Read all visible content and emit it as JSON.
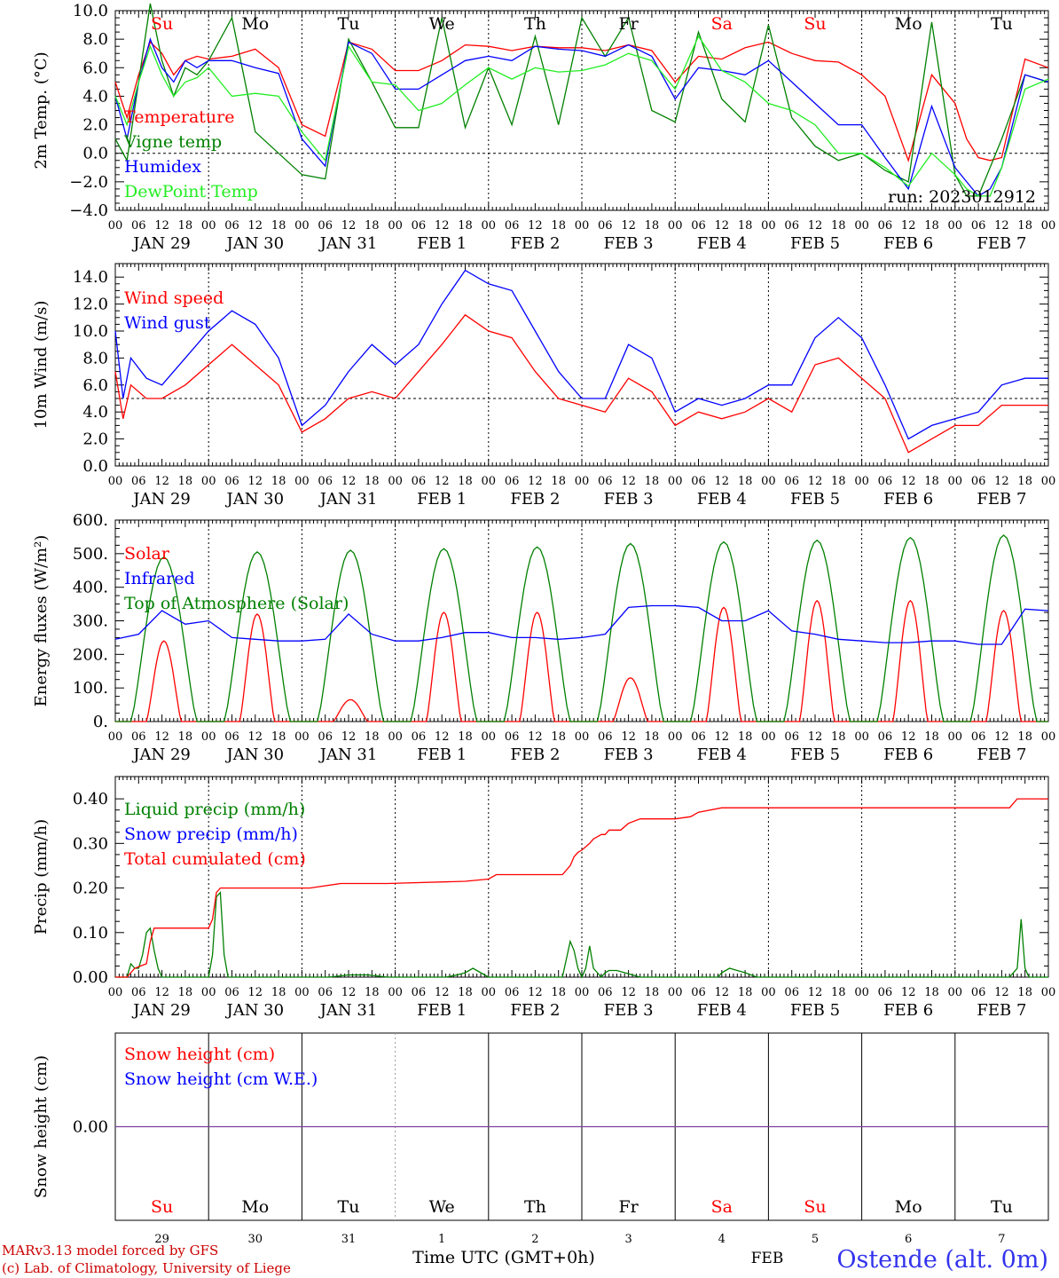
{
  "station": "Ostende (alt. 0m)",
  "run_label": "run: 2023012912",
  "footer": {
    "model": "MARv3.13 model forced by GFS",
    "lab": "(c) Lab. of Climatology, University of Liege",
    "xlabel": "Time UTC (GMT+0h)",
    "month": "FEB"
  },
  "days": [
    "Su",
    "Mo",
    "Tu",
    "We",
    "Th",
    "Fr",
    "Sa",
    "Su",
    "Mo",
    "Tu"
  ],
  "weekend": [
    true,
    false,
    false,
    false,
    false,
    false,
    true,
    true,
    false,
    false
  ],
  "date_labels": [
    "JAN 29",
    "JAN 30",
    "JAN 31",
    "FEB  1",
    "FEB  2",
    "FEB  3",
    "FEB  4",
    "FEB  5",
    "FEB  6",
    "FEB  7"
  ],
  "day_numbers": [
    "29",
    "30",
    "31",
    "1",
    "2",
    "3",
    "4",
    "5",
    "6",
    "7"
  ],
  "hour_ticks": [
    "00",
    "06",
    "12",
    "18"
  ],
  "last_hour_tick": "00",
  "colors": {
    "red": "#ff0000",
    "green": "#008000",
    "blue": "#0000ff",
    "lightgreen": "#22ee22",
    "purple": "#7f3f9f"
  },
  "chart_data": [
    {
      "type": "line",
      "ylabel": "2m Temp. (°C)",
      "ylim": [
        -4,
        10
      ],
      "yticks": [
        -4,
        -2,
        0,
        2,
        4,
        6,
        8,
        10
      ],
      "ytick_labels": [
        "−4.0",
        "−2.0",
        "0.0",
        "2.0",
        "4.0",
        "6.0",
        "8.0",
        "10.0"
      ],
      "ref_line": 0,
      "legend": [
        "Temperature",
        "Vigne temp",
        "Humidex",
        "DewPoint Temp"
      ],
      "series": [
        {
          "name": "Temperature",
          "color": "red",
          "x": [
            0,
            3,
            6,
            9,
            12,
            15,
            18,
            21,
            24,
            30,
            36,
            42,
            48,
            54,
            60,
            66,
            72,
            78,
            84,
            90,
            96,
            102,
            108,
            114,
            120,
            126,
            132,
            138,
            144,
            150,
            156,
            162,
            168,
            174,
            180,
            186,
            192,
            198,
            204,
            210,
            216,
            219,
            222,
            225,
            228,
            234,
            240
          ],
          "y": [
            5,
            2.5,
            5.5,
            7.8,
            7,
            5.5,
            6.5,
            6.8,
            6.6,
            6.8,
            7.3,
            6,
            2,
            1.2,
            7.8,
            7.3,
            5.8,
            5.8,
            6.5,
            7.6,
            7.5,
            7.2,
            7.5,
            7.4,
            7.4,
            7.2,
            7.6,
            7.2,
            5,
            6.8,
            6.6,
            7.4,
            7.8,
            7,
            6.5,
            6.4,
            5.5,
            4,
            -0.5,
            5.5,
            3.5,
            1,
            -0.3,
            -0.5,
            -0.3,
            6.6,
            6
          ]
        },
        {
          "name": "Vigne temp",
          "color": "green",
          "x": [
            0,
            3,
            6,
            9,
            12,
            15,
            18,
            21,
            24,
            30,
            36,
            42,
            48,
            54,
            60,
            66,
            72,
            78,
            84,
            90,
            96,
            102,
            108,
            114,
            120,
            126,
            132,
            138,
            144,
            150,
            156,
            162,
            168,
            174,
            180,
            186,
            192,
            198,
            204,
            210,
            216,
            219,
            222,
            225,
            228,
            234,
            240
          ],
          "y": [
            1,
            -0.5,
            5,
            10.5,
            6.5,
            4,
            6,
            5.5,
            6.5,
            9.5,
            1.5,
            0,
            -1.5,
            -1.8,
            8,
            5,
            1.8,
            1.8,
            9.5,
            1.8,
            6,
            2,
            8.2,
            2,
            9.5,
            6.8,
            9.5,
            3,
            2.2,
            8.5,
            3.8,
            2.2,
            9,
            2.5,
            0.5,
            -0.5,
            0,
            -1.2,
            -2,
            9.2,
            -1.5,
            -3,
            -3,
            -1,
            1,
            5.5,
            5
          ]
        },
        {
          "name": "Humidex",
          "color": "blue",
          "x": [
            0,
            3,
            6,
            9,
            12,
            15,
            18,
            21,
            24,
            30,
            36,
            42,
            48,
            54,
            60,
            66,
            72,
            78,
            84,
            90,
            96,
            102,
            108,
            114,
            120,
            126,
            132,
            138,
            144,
            150,
            156,
            162,
            168,
            174,
            180,
            186,
            192,
            198,
            204,
            210,
            216,
            219,
            222,
            225,
            228,
            234,
            240
          ],
          "y": [
            4,
            1,
            5,
            8,
            6,
            5,
            6.5,
            6,
            6.5,
            6.5,
            6,
            5.6,
            1,
            -0.9,
            7.8,
            7,
            4.5,
            4.5,
            5.5,
            6.5,
            6.8,
            6.5,
            7.5,
            7.3,
            7.2,
            6.8,
            7.6,
            6.8,
            3.8,
            6,
            5.8,
            5.5,
            6.5,
            5,
            3.5,
            2,
            2,
            -0.3,
            -2.5,
            3.3,
            -1,
            -2,
            -3,
            -2.5,
            -1,
            5.5,
            5
          ]
        },
        {
          "name": "DewPoint Temp",
          "color": "lightgreen",
          "x": [
            0,
            3,
            6,
            9,
            12,
            15,
            18,
            21,
            24,
            30,
            36,
            42,
            48,
            54,
            60,
            66,
            72,
            78,
            84,
            90,
            96,
            102,
            108,
            114,
            120,
            126,
            132,
            138,
            144,
            150,
            156,
            162,
            168,
            174,
            180,
            186,
            192,
            198,
            204,
            210,
            216,
            219,
            222,
            225,
            228,
            234,
            240
          ],
          "y": [
            4,
            2,
            5,
            7.5,
            5.5,
            4,
            5,
            5.3,
            6,
            4,
            4.2,
            4,
            1.5,
            -0.5,
            7.5,
            5,
            4.8,
            3,
            3.5,
            4.8,
            6,
            5.2,
            6,
            5.7,
            5.8,
            6.2,
            7,
            6.5,
            4.5,
            8.2,
            5.8,
            5,
            3.5,
            3,
            2,
            0,
            0,
            -1,
            -2.3,
            0,
            -1.5,
            -2.5,
            -3,
            -3,
            -1,
            4.5,
            5.2
          ]
        }
      ]
    },
    {
      "type": "line",
      "ylabel": "10m Wind (m/s)",
      "ylim": [
        0,
        15
      ],
      "yticks": [
        0,
        2,
        4,
        6,
        8,
        10,
        12,
        14
      ],
      "ytick_labels": [
        "0.0",
        "2.0",
        "4.0",
        "6.0",
        "8.0",
        "10.0",
        "12.0",
        "14.0"
      ],
      "ref_line": 5,
      "legend": [
        "Wind speed",
        "Wind gust"
      ],
      "series": [
        {
          "name": "Wind speed",
          "color": "red",
          "x": [
            0,
            2,
            4,
            8,
            12,
            18,
            24,
            30,
            36,
            42,
            48,
            54,
            60,
            66,
            72,
            78,
            84,
            90,
            96,
            102,
            108,
            114,
            120,
            126,
            132,
            138,
            144,
            150,
            156,
            162,
            168,
            174,
            180,
            186,
            192,
            198,
            204,
            210,
            216,
            222,
            228,
            234,
            240
          ],
          "y": [
            7,
            3.5,
            6,
            5,
            5,
            6,
            7.5,
            9,
            7.5,
            6,
            2.5,
            3.5,
            5,
            5.5,
            5,
            7,
            9,
            11.2,
            10,
            9.5,
            7,
            5,
            4.5,
            4,
            6.5,
            5.5,
            3,
            4,
            3.5,
            4,
            5,
            4,
            7.5,
            8,
            6.5,
            5,
            1,
            2,
            3,
            3,
            4.5,
            4.5,
            4.5
          ]
        },
        {
          "name": "Wind gust",
          "color": "blue",
          "x": [
            0,
            2,
            4,
            8,
            12,
            18,
            24,
            30,
            36,
            42,
            48,
            54,
            60,
            66,
            72,
            78,
            84,
            90,
            96,
            102,
            108,
            114,
            120,
            126,
            132,
            138,
            144,
            150,
            156,
            162,
            168,
            174,
            180,
            186,
            192,
            198,
            204,
            210,
            216,
            222,
            228,
            234,
            240
          ],
          "y": [
            10,
            5,
            8,
            6.5,
            6,
            8,
            10,
            11.5,
            10.5,
            8,
            3,
            4.5,
            7,
            9,
            7.5,
            9,
            12,
            14.5,
            13.5,
            13,
            10,
            7,
            5,
            5,
            9,
            8,
            4,
            5,
            4.5,
            5,
            6,
            6,
            9.5,
            11,
            9.5,
            6,
            2,
            3,
            3.5,
            4,
            6,
            6.5,
            6.5
          ]
        }
      ]
    },
    {
      "type": "line",
      "ylabel": "Energy fluxes (W/m²)",
      "ylim": [
        0,
        600
      ],
      "yticks": [
        0,
        100,
        200,
        300,
        400,
        500,
        600
      ],
      "ytick_labels": [
        "0.",
        "100.",
        "200.",
        "300.",
        "400.",
        "500.",
        "600."
      ],
      "legend": [
        "Solar",
        "Infrared",
        "Top of Atmosphere (Solar)"
      ],
      "series": [
        {
          "name": "Solar",
          "color": "red",
          "peak_hour": 12.5,
          "halfwidth": 4.5,
          "peaks": [
            240,
            320,
            65,
            325,
            325,
            130,
            340,
            360,
            360,
            330
          ]
        },
        {
          "name": "Top of Atmosphere (Solar)",
          "color": "green",
          "peak_hour": 12.5,
          "halfwidth": 8.5,
          "peaks": [
            490,
            505,
            510,
            515,
            520,
            530,
            535,
            540,
            548,
            555
          ]
        },
        {
          "name": "Infrared",
          "color": "blue",
          "x": [
            0,
            6,
            12,
            18,
            24,
            30,
            36,
            42,
            48,
            54,
            60,
            66,
            72,
            78,
            84,
            90,
            96,
            102,
            108,
            114,
            120,
            126,
            132,
            138,
            144,
            150,
            156,
            162,
            168,
            174,
            180,
            186,
            192,
            198,
            204,
            210,
            216,
            222,
            228,
            234,
            240
          ],
          "y": [
            245,
            260,
            330,
            290,
            300,
            250,
            245,
            240,
            240,
            245,
            320,
            260,
            240,
            240,
            250,
            265,
            265,
            250,
            250,
            245,
            250,
            260,
            340,
            345,
            345,
            340,
            300,
            300,
            330,
            270,
            260,
            245,
            240,
            235,
            235,
            240,
            240,
            230,
            230,
            335,
            330
          ]
        }
      ]
    },
    {
      "type": "line",
      "ylabel": "Precip (mm/h)",
      "ylim": [
        0,
        0.45
      ],
      "yticks": [
        0,
        0.1,
        0.2,
        0.3,
        0.4
      ],
      "ytick_labels": [
        "0.00",
        "0.10",
        "0.20",
        "0.30",
        "0.40"
      ],
      "legend": [
        "Liquid precip (mm/h)",
        "Snow precip (mm/h)",
        "Total cumulated (cm)"
      ],
      "series": [
        {
          "name": "Liquid precip (mm/h)",
          "color": "green",
          "x": [
            0,
            3,
            4,
            5,
            6,
            7,
            8,
            9,
            10,
            11,
            12,
            20,
            24,
            25,
            26,
            27,
            28,
            29,
            30,
            40,
            55,
            60,
            65,
            70,
            80,
            85,
            88,
            90,
            92,
            94,
            96,
            100,
            110,
            115,
            116,
            117,
            118,
            119,
            120,
            121,
            122,
            123,
            125,
            126,
            127,
            129,
            131,
            135,
            140,
            145,
            150,
            155,
            156,
            158,
            160,
            162,
            165,
            170,
            180,
            200,
            210,
            216,
            225,
            230,
            232,
            233,
            234,
            235,
            236,
            240
          ],
          "y": [
            0,
            0,
            0.03,
            0.02,
            0.02,
            0.05,
            0.1,
            0.11,
            0.06,
            0.02,
            0,
            0,
            0,
            0.05,
            0.18,
            0.19,
            0.05,
            0,
            0,
            0,
            0,
            0.005,
            0.005,
            0,
            0,
            0,
            0.005,
            0.01,
            0.02,
            0.01,
            0,
            0,
            0,
            0,
            0.04,
            0.08,
            0.06,
            0.02,
            0,
            0.02,
            0.07,
            0.02,
            0,
            0.01,
            0.015,
            0.015,
            0.01,
            0,
            0,
            0,
            0,
            0,
            0.01,
            0.02,
            0.015,
            0.01,
            0,
            0,
            0,
            0,
            0,
            0,
            0,
            0,
            0.02,
            0.13,
            0.02,
            0,
            0,
            0
          ]
        },
        {
          "name": "Total cumulated (cm)",
          "color": "red",
          "x": [
            0,
            3,
            5,
            8,
            9,
            10,
            11,
            20,
            24,
            25,
            26,
            27,
            40,
            50,
            58,
            60,
            70,
            90,
            96,
            98,
            100,
            110,
            115,
            117,
            118,
            119,
            120,
            122,
            123,
            124,
            125,
            126,
            127,
            130,
            132,
            135,
            140,
            144,
            148,
            150,
            156,
            160,
            170,
            200,
            230,
            232,
            240
          ],
          "y": [
            0,
            0,
            0.02,
            0.03,
            0.08,
            0.11,
            0.11,
            0.11,
            0.11,
            0.13,
            0.19,
            0.2,
            0.2,
            0.2,
            0.21,
            0.21,
            0.21,
            0.215,
            0.22,
            0.23,
            0.23,
            0.23,
            0.23,
            0.25,
            0.27,
            0.28,
            0.285,
            0.3,
            0.31,
            0.315,
            0.32,
            0.32,
            0.33,
            0.33,
            0.345,
            0.355,
            0.355,
            0.355,
            0.36,
            0.37,
            0.38,
            0.38,
            0.38,
            0.38,
            0.38,
            0.4,
            0.4
          ]
        }
      ]
    },
    {
      "type": "line",
      "ylabel": "Snow height (cm)",
      "ylim": [
        -1,
        1
      ],
      "yticks": [
        0
      ],
      "ytick_labels": [
        "0.00"
      ],
      "legend": [
        "Snow height (cm)",
        "Snow height (cm W.E.)"
      ],
      "series": [
        {
          "name": "Snow height (cm)",
          "color": "purple",
          "x": [
            0,
            240
          ],
          "y": [
            0,
            0
          ]
        }
      ]
    }
  ]
}
